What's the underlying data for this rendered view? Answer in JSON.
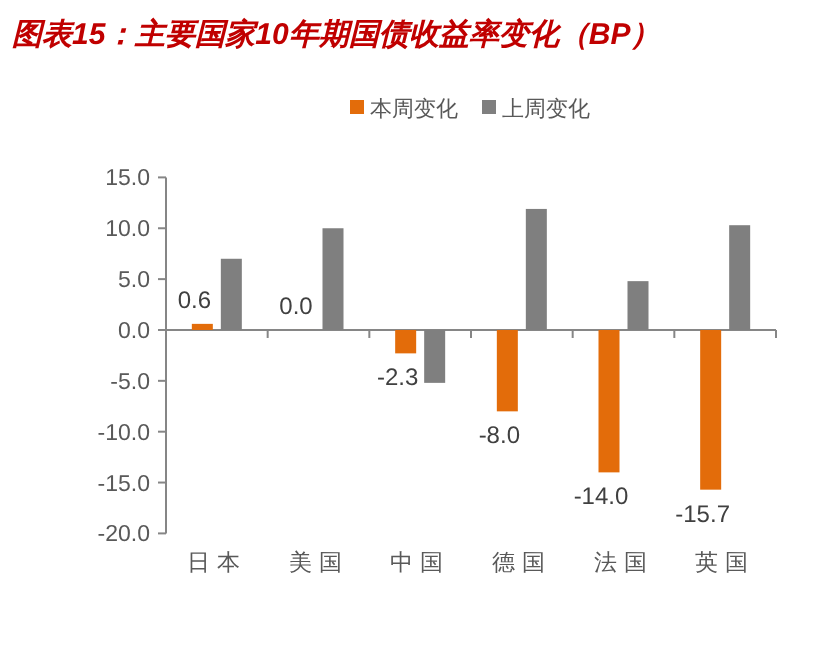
{
  "chart_data": {
    "type": "bar",
    "title": "图表15：主要国家10年期国债收益率变化（BP）",
    "categories": [
      "日本",
      "美国",
      "中国",
      "德国",
      "法国",
      "英国"
    ],
    "series": [
      {
        "name": "本周变化",
        "color": "#e36c0a",
        "values": [
          0.6,
          0.0,
          -2.3,
          -8.0,
          -14.0,
          -15.7
        ],
        "value_labels": [
          "0.6",
          "0.0",
          "-2.3",
          "-8.0",
          "-14.0",
          "-15.7"
        ]
      },
      {
        "name": "上周变化",
        "color": "#7f7f7f",
        "values": [
          7.0,
          10.0,
          -5.2,
          11.9,
          4.8,
          10.3
        ]
      }
    ],
    "ylim": [
      -20,
      15
    ],
    "yticks": [
      {
        "value": -20,
        "label": "-20.0"
      },
      {
        "value": -15,
        "label": "-15.0"
      },
      {
        "value": -10,
        "label": "-10.0"
      },
      {
        "value": -5,
        "label": "-5.0"
      },
      {
        "value": 0,
        "label": "0.0"
      },
      {
        "value": 5,
        "label": "5.0"
      },
      {
        "value": 10,
        "label": "10.0"
      },
      {
        "value": 15,
        "label": "15.0"
      }
    ],
    "legend": "top"
  }
}
